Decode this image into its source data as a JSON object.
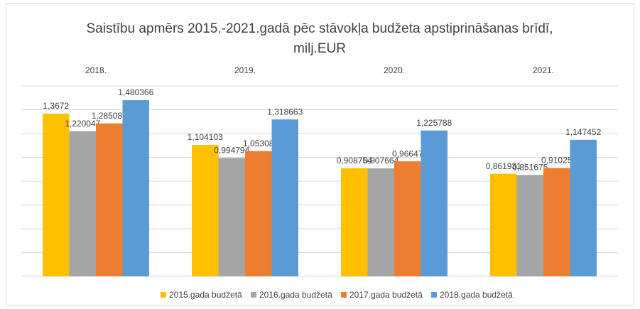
{
  "chart_data": {
    "type": "bar",
    "title": [
      "Saistību apmērs 2015.-2021.gadā pēc stāvokļa budžeta apstiprināšanas brīdī,",
      "milj.EUR"
    ],
    "categories": [
      "2018.",
      "2019.",
      "2020.",
      "2021."
    ],
    "series": [
      {
        "name": "2015.gada budžetā",
        "color": "#ffc000",
        "values": [
          1.3672,
          1.104103,
          0.908754,
          0.861931
        ],
        "value_labels": [
          "1,3672",
          "1,104103",
          "0,908754",
          "0,861931"
        ]
      },
      {
        "name": "2016.gada budžetā",
        "color": "#a5a5a5",
        "values": [
          1.220047,
          0.994794,
          0.907664,
          0.851675
        ],
        "value_labels": [
          "1,220047",
          "0,994794",
          "0,907664",
          "0,851675"
        ]
      },
      {
        "name": "2017.gada budžetā",
        "color": "#ed7d31",
        "values": [
          1.285084,
          1.05308,
          0.96647,
          0.91025
        ],
        "value_labels": [
          "1,285084",
          "1,05308",
          "0,96647",
          "0,91025"
        ]
      },
      {
        "name": "2018.gada budžetā",
        "color": "#5b9bd5",
        "values": [
          1.480366,
          1.318663,
          1.225788,
          1.147452
        ],
        "value_labels": [
          "1,480366",
          "1,318663",
          "1,225788",
          "1,147452"
        ]
      }
    ],
    "ylim": [
      0,
      1.6
    ],
    "yticks": [
      0,
      0.2,
      0.4,
      0.6,
      0.8,
      1,
      1.2,
      1.4,
      1.6
    ],
    "grid": true,
    "legend": "bottom"
  }
}
